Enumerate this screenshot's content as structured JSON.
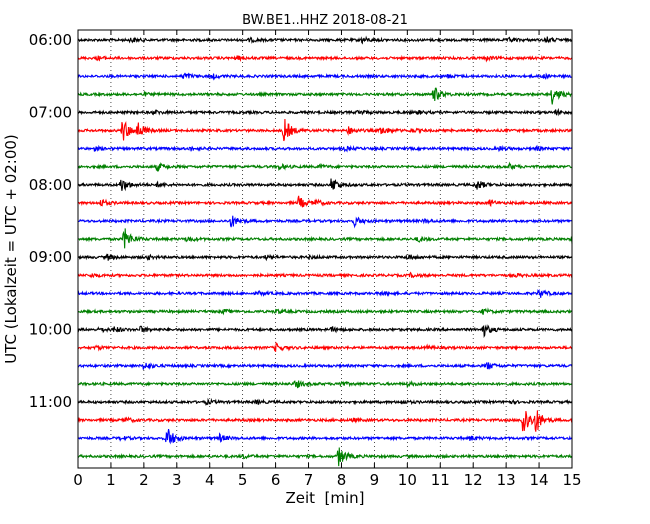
{
  "chart_data": {
    "type": "line",
    "title": "BW.BE1..HHZ 2018-08-21",
    "xlabel": "Zeit  [min]",
    "ylabel": "UTC (Lokalzeit = UTC + 02:00)",
    "xlim": [
      0,
      15
    ],
    "x_ticks": [
      "0",
      "1",
      "2",
      "3",
      "4",
      "5",
      "6",
      "7",
      "8",
      "9",
      "10",
      "11",
      "12",
      "13",
      "14",
      "15"
    ],
    "y_ticks": [
      "06:00",
      "07:00",
      "08:00",
      "09:00",
      "10:00",
      "11:00"
    ],
    "grid": "vertical dotted",
    "trace_colors": [
      "#000000",
      "#ff0000",
      "#0000ff",
      "#008000"
    ],
    "traces": [
      {
        "start": "06:00",
        "events": [
          [
            1.6,
            0.25
          ],
          [
            5.2,
            0.2
          ],
          [
            8.6,
            0.35
          ],
          [
            13.1,
            0.2
          ],
          [
            14.2,
            0.35
          ]
        ]
      },
      {
        "start": "06:15",
        "events": [
          [
            0.6,
            0.2
          ],
          [
            4.8,
            0.2
          ],
          [
            12.4,
            0.2
          ]
        ]
      },
      {
        "start": "06:30",
        "events": [
          [
            3.2,
            0.4
          ],
          [
            4.1,
            0.2
          ],
          [
            11.2,
            0.2
          ],
          [
            14.1,
            0.2
          ]
        ]
      },
      {
        "start": "06:45",
        "events": [
          [
            2.0,
            0.15
          ],
          [
            10.8,
            0.9
          ],
          [
            14.4,
            1.0
          ]
        ]
      },
      {
        "start": "07:00",
        "events": [
          [
            2.3,
            0.2
          ],
          [
            8.5,
            0.25
          ],
          [
            10.3,
            0.2
          ],
          [
            14.5,
            0.25
          ]
        ]
      },
      {
        "start": "07:15",
        "events": [
          [
            1.35,
            1.4
          ],
          [
            1.8,
            0.9
          ],
          [
            6.25,
            1.4
          ],
          [
            8.2,
            0.4
          ],
          [
            9.2,
            0.5
          ],
          [
            10.1,
            0.2
          ]
        ]
      },
      {
        "start": "07:30",
        "events": [
          [
            0.5,
            0.2
          ],
          [
            3.4,
            0.2
          ],
          [
            8.1,
            0.2
          ],
          [
            12.8,
            0.2
          ],
          [
            13.9,
            0.2
          ]
        ]
      },
      {
        "start": "07:45",
        "events": [
          [
            2.4,
            0.45
          ],
          [
            6.1,
            0.3
          ],
          [
            7.3,
            0.2
          ],
          [
            13.1,
            0.25
          ]
        ]
      },
      {
        "start": "08:00",
        "events": [
          [
            1.3,
            0.8
          ],
          [
            7.7,
            0.9
          ],
          [
            12.1,
            0.6
          ],
          [
            2.4,
            0.2
          ]
        ]
      },
      {
        "start": "08:15",
        "events": [
          [
            0.7,
            0.4
          ],
          [
            6.7,
            0.7
          ],
          [
            7.2,
            0.3
          ],
          [
            12.5,
            0.25
          ]
        ]
      },
      {
        "start": "08:30",
        "events": [
          [
            4.65,
            0.7
          ],
          [
            8.4,
            0.5
          ],
          [
            10.5,
            0.2
          ]
        ]
      },
      {
        "start": "08:45",
        "events": [
          [
            1.4,
            1.3
          ],
          [
            3.3,
            0.3
          ],
          [
            10.3,
            0.3
          ],
          [
            15.0,
            0.4
          ]
        ]
      },
      {
        "start": "09:00",
        "events": [
          [
            0.9,
            0.3
          ],
          [
            2.1,
            0.2
          ],
          [
            5.7,
            0.2
          ],
          [
            7.0,
            0.2
          ],
          [
            10.0,
            0.3
          ]
        ]
      },
      {
        "start": "09:15",
        "events": [
          [
            0.4,
            0.2
          ],
          [
            10.1,
            0.2
          ],
          [
            13.3,
            0.15
          ]
        ]
      },
      {
        "start": "09:30",
        "events": [
          [
            5.5,
            0.15
          ],
          [
            9.2,
            0.2
          ],
          [
            14.0,
            0.5
          ]
        ]
      },
      {
        "start": "09:45",
        "events": [
          [
            4.4,
            0.2
          ],
          [
            6.0,
            0.2
          ],
          [
            12.3,
            0.25
          ]
        ]
      },
      {
        "start": "10:00",
        "events": [
          [
            0.65,
            0.25
          ],
          [
            1.1,
            0.3
          ],
          [
            1.9,
            0.35
          ],
          [
            7.7,
            0.25
          ],
          [
            12.3,
            0.75
          ]
        ]
      },
      {
        "start": "10:15",
        "events": [
          [
            0.55,
            0.2
          ],
          [
            6.0,
            0.45
          ],
          [
            10.6,
            0.2
          ]
        ]
      },
      {
        "start": "10:30",
        "events": [
          [
            2.0,
            0.5
          ],
          [
            12.4,
            0.45
          ]
        ]
      },
      {
        "start": "10:45",
        "events": [
          [
            6.6,
            0.45
          ],
          [
            7.9,
            0.3
          ],
          [
            10.0,
            0.2
          ]
        ]
      },
      {
        "start": "11:00",
        "events": [
          [
            3.9,
            0.2
          ],
          [
            5.4,
            0.2
          ],
          [
            9.8,
            0.2
          ],
          [
            13.0,
            0.2
          ]
        ]
      },
      {
        "start": "11:15",
        "events": [
          [
            1.4,
            0.3
          ],
          [
            8.3,
            0.2
          ],
          [
            13.5,
            2.2
          ],
          [
            13.9,
            1.2
          ]
        ]
      },
      {
        "start": "11:30",
        "events": [
          [
            1.3,
            0.2
          ],
          [
            2.7,
            1.3
          ],
          [
            4.3,
            0.4
          ],
          [
            11.9,
            0.25
          ]
        ]
      },
      {
        "start": "11:45",
        "events": [
          [
            5.0,
            0.2
          ],
          [
            7.9,
            1.1
          ]
        ]
      }
    ]
  }
}
